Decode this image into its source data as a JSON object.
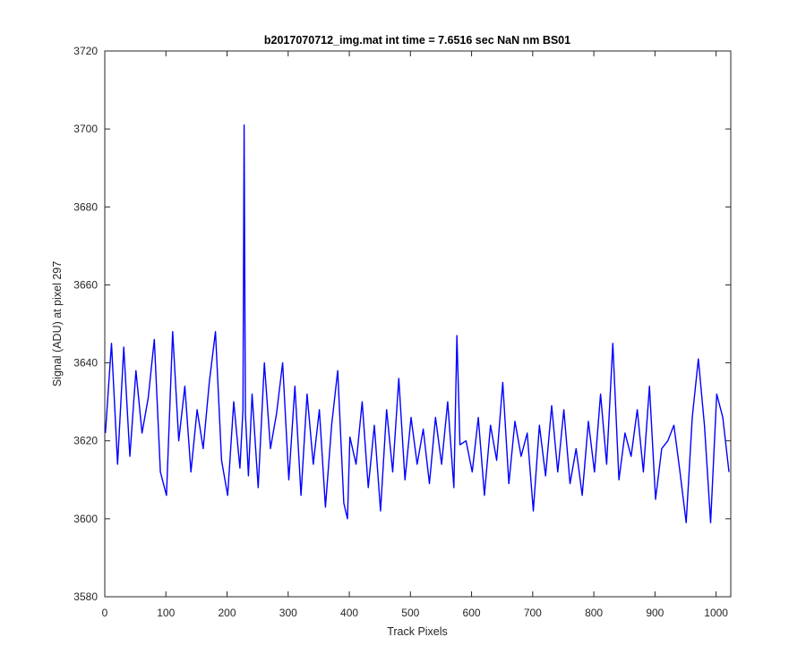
{
  "chart_data": {
    "type": "line",
    "title": "b2017070712_img.mat int time = 7.6516 sec  NaN nm BS01",
    "xlabel": "Track Pixels",
    "ylabel": "Signal (ADU) at pixel 297",
    "xlim": [
      0,
      1024
    ],
    "ylim": [
      3580,
      3720
    ],
    "xticks": [
      0,
      100,
      200,
      300,
      400,
      500,
      600,
      700,
      800,
      900,
      1000
    ],
    "yticks": [
      3580,
      3600,
      3620,
      3640,
      3660,
      3680,
      3700,
      3720
    ],
    "grid": false,
    "legend": "none",
    "series": [
      {
        "color": "#0000ff",
        "x": [
          1,
          11,
          21,
          31,
          41,
          51,
          61,
          71,
          81,
          91,
          101,
          111,
          121,
          131,
          141,
          151,
          161,
          171,
          181,
          191,
          201,
          211,
          221,
          226,
          228,
          230,
          235,
          241,
          251,
          261,
          271,
          281,
          291,
          301,
          311,
          321,
          331,
          341,
          351,
          361,
          371,
          381,
          391,
          397,
          401,
          411,
          421,
          431,
          441,
          451,
          461,
          471,
          481,
          491,
          501,
          511,
          521,
          531,
          541,
          551,
          561,
          571,
          576,
          581,
          591,
          601,
          611,
          621,
          631,
          641,
          651,
          661,
          671,
          681,
          691,
          701,
          711,
          721,
          731,
          741,
          751,
          761,
          771,
          781,
          791,
          801,
          811,
          821,
          831,
          841,
          851,
          861,
          871,
          881,
          891,
          901,
          911,
          921,
          931,
          941,
          951,
          961,
          971,
          981,
          991,
          1001,
          1011,
          1021
        ],
        "y": [
          3622,
          3645,
          3614,
          3644,
          3616,
          3638,
          3622,
          3631,
          3646,
          3612,
          3606,
          3648,
          3620,
          3634,
          3612,
          3628,
          3618,
          3635,
          3648,
          3615,
          3606,
          3630,
          3613,
          3628,
          3701,
          3627,
          3611,
          3632,
          3608,
          3640,
          3618,
          3627,
          3640,
          3610,
          3634,
          3606,
          3632,
          3614,
          3628,
          3603,
          3624,
          3638,
          3604,
          3600,
          3621,
          3614,
          3630,
          3608,
          3624,
          3602,
          3628,
          3612,
          3636,
          3610,
          3626,
          3614,
          3623,
          3609,
          3626,
          3614,
          3630,
          3608,
          3647,
          3619,
          3620,
          3612,
          3626,
          3606,
          3624,
          3615,
          3635,
          3609,
          3625,
          3616,
          3622,
          3602,
          3624,
          3611,
          3629,
          3612,
          3628,
          3609,
          3618,
          3606,
          3625,
          3612,
          3632,
          3614,
          3645,
          3610,
          3622,
          3616,
          3628,
          3612,
          3634,
          3605,
          3618,
          3620,
          3624,
          3612,
          3599,
          3626,
          3641,
          3624,
          3599,
          3632,
          3626,
          3612
        ]
      }
    ]
  }
}
